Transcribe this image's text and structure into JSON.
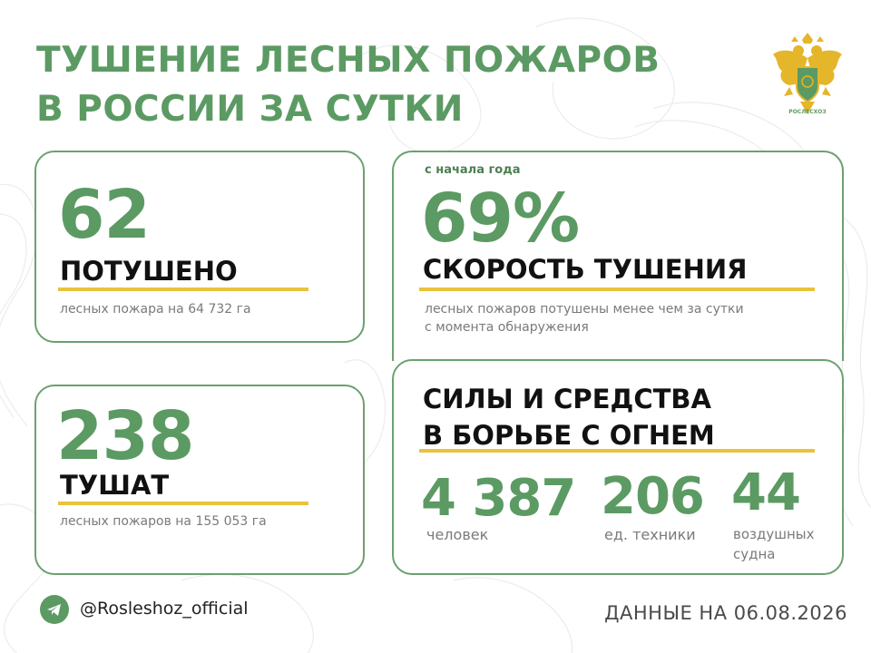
{
  "title": {
    "line1": "ТУШЕНИЕ ЛЕСНЫХ ПОЖАРОВ",
    "line2": "В РОССИИ ЗА СУТКИ"
  },
  "emblem": {
    "icon": "double-headed-eagle-emblem",
    "caption": "РОСЛЕСХОЗ"
  },
  "extinguished": {
    "value": "62",
    "label": "ПОТУШЕНО",
    "description": "лесных пожара на 64 732 га"
  },
  "in_progress": {
    "value": "238",
    "label": "ТУШАТ",
    "description": "лесных пожаров на 155 053 га"
  },
  "speed": {
    "period": "с начала года",
    "value": "69%",
    "label": "СКОРОСТЬ ТУШЕНИЯ",
    "description_line1": "лесных пожаров потушены менее чем за сутки",
    "description_line2": "с момента обнаружения"
  },
  "forces": {
    "title_line1": "СИЛЫ И СРЕДСТВА",
    "title_line2": "В БОРЬБЕ С ОГНЕМ",
    "people": {
      "value": "4 387",
      "label": "человек"
    },
    "machines": {
      "value": "206",
      "label": "ед. техники"
    },
    "aircraft": {
      "value": "44",
      "label_line1": "воздушных",
      "label_line2": "судна"
    }
  },
  "footer": {
    "icon": "telegram-icon",
    "handle": "@Rosleshoz_official",
    "date_text": "ДАННЫЕ НА 06.08.2026"
  },
  "colors": {
    "accent_green": "#5c9a63",
    "border_green": "#6ba16f",
    "underline_yellow": "#e8c33b"
  }
}
